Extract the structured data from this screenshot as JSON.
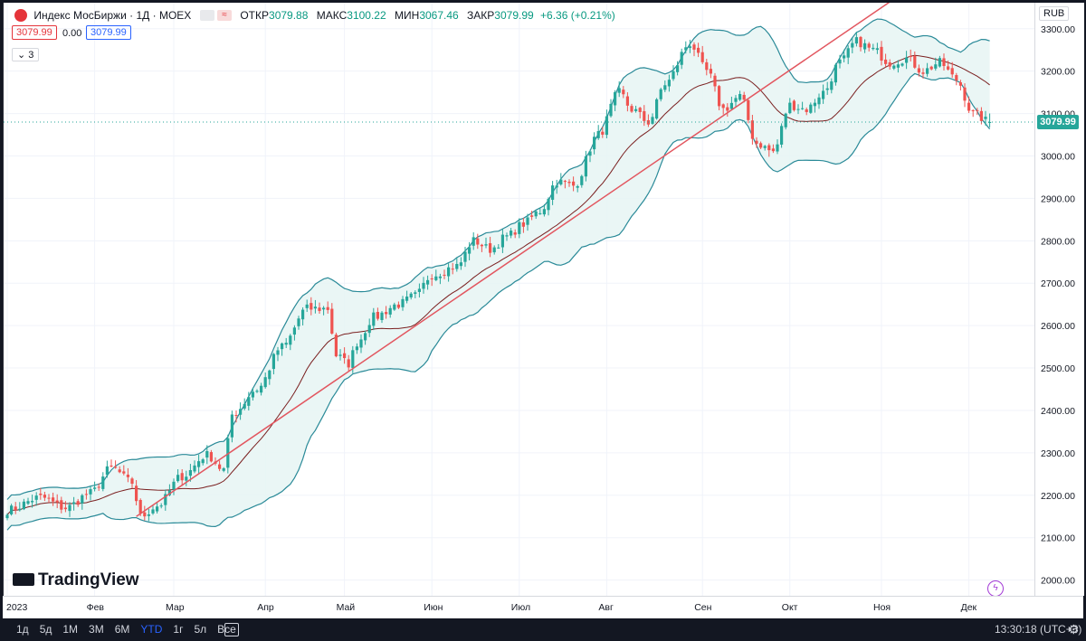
{
  "header": {
    "symbol": "Индекс МосБиржи",
    "interval": "1Д",
    "exchange": "MOEX",
    "open_label": "ОТКР",
    "open": "3079.88",
    "high_label": "МАКС",
    "high": "3100.22",
    "low_label": "МИН",
    "low": "3067.46",
    "close_label": "ЗАКР",
    "close": "3079.99",
    "change": "+6.36 (+0.21%)",
    "sell_price": "3079.99",
    "spread": "0.00",
    "buy_price": "3079.99",
    "indicator_count": "3"
  },
  "currency": "RUB",
  "last_price_label": "3079.99",
  "watermark": "TradingView",
  "time_labels": [
    "2023",
    "Фев",
    "Мар",
    "Апр",
    "Май",
    "Июн",
    "Июл",
    "Авг",
    "Сен",
    "Окт",
    "Ноя",
    "Дек"
  ],
  "ranges": [
    "1д",
    "5д",
    "1М",
    "3М",
    "6М",
    "YTD",
    "1г",
    "5л",
    "Все"
  ],
  "active_range": "YTD",
  "clock": "13:30:18 (UTC+3)",
  "colors": {
    "up": "#26a69a",
    "down": "#ef5350",
    "band": "#2a8a98",
    "band_fill": "#e6f4f3",
    "ma": "#7a1f1f",
    "trend": "#e2565f"
  },
  "icons": [
    "moex-logo-icon",
    "calendar-range-icon",
    "gear-icon",
    "lightning-icon",
    "chevron-down-icon"
  ],
  "chart_data": {
    "type": "candlestick",
    "ylim": [
      1980,
      3340
    ],
    "y_ticks": [
      2000,
      2100,
      2200,
      2300,
      2400,
      2500,
      2600,
      2700,
      2800,
      2900,
      3000,
      3100,
      3200,
      3300
    ],
    "months": [
      {
        "label": "2023",
        "day": 0
      },
      {
        "label": "Фев",
        "day": 21
      },
      {
        "label": "Мар",
        "day": 40
      },
      {
        "label": "Апр",
        "day": 62
      },
      {
        "label": "Май",
        "day": 81
      },
      {
        "label": "Июн",
        "day": 102
      },
      {
        "label": "Июл",
        "day": 123
      },
      {
        "label": "Авг",
        "day": 144
      },
      {
        "label": "Сен",
        "day": 167
      },
      {
        "label": "Окт",
        "day": 188
      },
      {
        "label": "Ноя",
        "day": 210
      },
      {
        "label": "Дек",
        "day": 231
      }
    ],
    "close_anchors": [
      [
        0,
        2165
      ],
      [
        8,
        2195
      ],
      [
        14,
        2170
      ],
      [
        20,
        2205
      ],
      [
        25,
        2265
      ],
      [
        30,
        2230
      ],
      [
        32,
        2150
      ],
      [
        36,
        2175
      ],
      [
        42,
        2245
      ],
      [
        48,
        2295
      ],
      [
        52,
        2260
      ],
      [
        54,
        2390
      ],
      [
        60,
        2450
      ],
      [
        66,
        2550
      ],
      [
        72,
        2640
      ],
      [
        77,
        2640
      ],
      [
        79,
        2530
      ],
      [
        82,
        2510
      ],
      [
        84,
        2560
      ],
      [
        88,
        2620
      ],
      [
        94,
        2650
      ],
      [
        98,
        2670
      ],
      [
        102,
        2720
      ],
      [
        108,
        2740
      ],
      [
        112,
        2800
      ],
      [
        116,
        2780
      ],
      [
        120,
        2810
      ],
      [
        124,
        2840
      ],
      [
        128,
        2870
      ],
      [
        132,
        2940
      ],
      [
        136,
        2930
      ],
      [
        142,
        3050
      ],
      [
        147,
        3150
      ],
      [
        150,
        3110
      ],
      [
        154,
        3080
      ],
      [
        158,
        3170
      ],
      [
        164,
        3265
      ],
      [
        168,
        3200
      ],
      [
        172,
        3110
      ],
      [
        176,
        3140
      ],
      [
        180,
        3030
      ],
      [
        184,
        3010
      ],
      [
        188,
        3120
      ],
      [
        192,
        3110
      ],
      [
        196,
        3150
      ],
      [
        200,
        3220
      ],
      [
        204,
        3270
      ],
      [
        208,
        3250
      ],
      [
        212,
        3220
      ],
      [
        216,
        3230
      ],
      [
        220,
        3200
      ],
      [
        224,
        3220
      ],
      [
        228,
        3180
      ],
      [
        232,
        3100
      ],
      [
        236,
        3080
      ]
    ],
    "last": {
      "open": 3079.88,
      "high": 3100.22,
      "low": 3067.46,
      "close": 3079.99
    },
    "bollinger": {
      "period": 20,
      "std": 2
    },
    "trend_line": {
      "from": {
        "day": 31,
        "value": 2150
      },
      "to": {
        "day": 216,
        "value": 3390
      }
    }
  }
}
